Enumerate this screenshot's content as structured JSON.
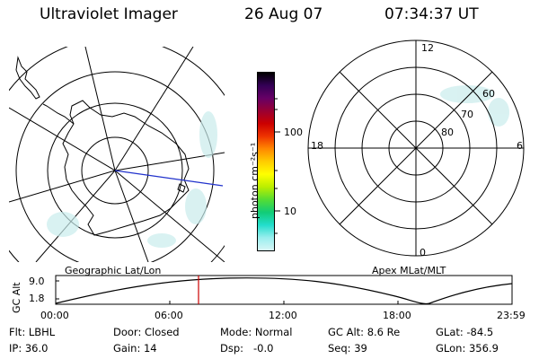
{
  "header": {
    "instrument": "Ultraviolet Imager",
    "date": "26 Aug 07",
    "time": "07:34:37 UT"
  },
  "geo_panel": {
    "label": "Geographic Lat/Lon"
  },
  "apex_panel": {
    "label": "Apex MLat/MLT",
    "mlt_labels": [
      "12",
      "18",
      "6",
      "0"
    ],
    "lat_labels": [
      "60",
      "70",
      "80"
    ]
  },
  "colorbar": {
    "unit_label": "photon cm⁻²s⁻¹",
    "ticks": [
      "100",
      "10"
    ],
    "colors_top_to_bottom": [
      "#000000",
      "#330055",
      "#660066",
      "#990033",
      "#cc0000",
      "#ee3300",
      "#ff8800",
      "#ffcc00",
      "#ffff00",
      "#bbee00",
      "#55dd33",
      "#11cc77",
      "#22ddcc",
      "#99eeee",
      "#d8f6f6"
    ]
  },
  "gc_alt_plot": {
    "ylabel": "GC Alt",
    "y_ticks": [
      "9.0",
      "1.8"
    ],
    "x_ticks": [
      "00:00",
      "06:00",
      "12:00",
      "18:00",
      "23:59"
    ],
    "marker_color": "#cc0000"
  },
  "info": {
    "flt": "Flt: LBHL",
    "ip": "IP: 36.0",
    "door": "Door: Closed",
    "gain": "Gain: 14",
    "mode": "Mode: Normal",
    "dsp": "Dsp:   -0.0",
    "gc_alt": "GC Alt: 8.6 Re",
    "seq": "Seq: 39",
    "glat": "GLat: -84.5",
    "glon": "GLon: 356.9"
  }
}
